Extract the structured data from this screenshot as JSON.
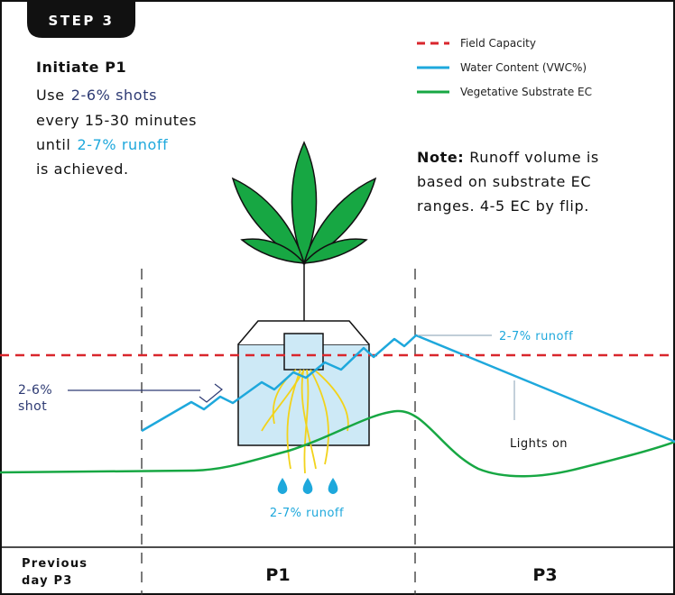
{
  "step": "STEP 3",
  "heading": "Initiate P1",
  "instructions": [
    [
      "Use",
      "2-6% shots"
    ],
    [
      "every 15-30 minutes"
    ],
    [
      "until",
      "2-7% runoff"
    ],
    [
      "is achieved."
    ]
  ],
  "legend": [
    "Field Capacity",
    "Water Content (VWC%)",
    "Vegetative Substrate EC"
  ],
  "note": {
    "label": "Note:",
    "lines": [
      "Runoff volume is",
      "based on substrate EC",
      "ranges. 4-5 EC by flip."
    ]
  },
  "annotations": {
    "runoff_top": "2-7% runoff",
    "shot": [
      "2-6%",
      "shot"
    ],
    "lights_on": "Lights on",
    "runoff_bottom": "2-7% runoff"
  },
  "phases": {
    "previous": [
      "Previous",
      "day P3"
    ],
    "p1": "P1",
    "p3": "P3"
  }
}
